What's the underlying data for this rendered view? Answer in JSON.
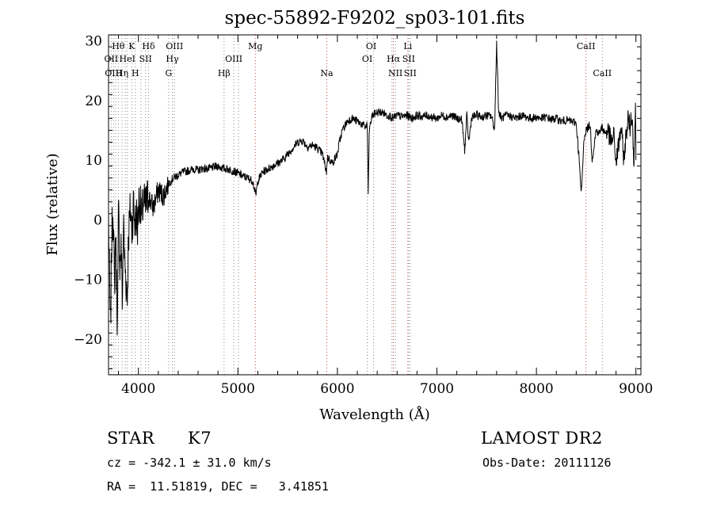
{
  "chart_data": {
    "type": "line",
    "title": "spec-55892-F9202_sp03-101.fits",
    "xlabel": "Wavelength (Å)",
    "ylabel": "Flux (relative)",
    "xlim": [
      3700,
      9050
    ],
    "ylim": [
      -26,
      31
    ],
    "xticks": [
      4000,
      5000,
      6000,
      7000,
      8000,
      9000
    ],
    "yticks": [
      -20,
      -10,
      0,
      10,
      20,
      30
    ],
    "series": [
      {
        "name": "",
        "x": [
          3700,
          3720,
          3730,
          3745,
          3760,
          3770,
          3790,
          3800,
          3815,
          3825,
          3840,
          3850,
          3860,
          3875,
          3890,
          3900,
          3920,
          3935,
          3950,
          3965,
          3980,
          3990,
          4000,
          4010,
          4030,
          4050,
          4070,
          4100,
          4150,
          4200,
          4250,
          4300,
          4350,
          4400,
          4450,
          4500,
          4550,
          4600,
          4650,
          4700,
          4750,
          4800,
          4850,
          4900,
          4950,
          5000,
          5050,
          5100,
          5150,
          5180,
          5200,
          5250,
          5300,
          5350,
          5400,
          5450,
          5500,
          5550,
          5600,
          5650,
          5700,
          5750,
          5800,
          5850,
          5890,
          5900,
          5950,
          6000,
          6020,
          6050,
          6100,
          6150,
          6200,
          6250,
          6280,
          6300,
          6310,
          6320,
          6350,
          6400,
          6450,
          6500,
          6520,
          6560,
          6600,
          6650,
          6700,
          6750,
          6800,
          6850,
          6900,
          6950,
          7000,
          7050,
          7100,
          7150,
          7200,
          7250,
          7280,
          7300,
          7320,
          7350,
          7400,
          7450,
          7500,
          7550,
          7580,
          7600,
          7620,
          7650,
          7700,
          7750,
          7800,
          7850,
          7900,
          7950,
          8000,
          8050,
          8100,
          8150,
          8200,
          8250,
          8300,
          8350,
          8400,
          8430,
          8450,
          8480,
          8500,
          8540,
          8560,
          8600,
          8630,
          8660,
          8690,
          8720,
          8750,
          8780,
          8800,
          8830,
          8850,
          8880,
          8900,
          8920,
          8940,
          8960,
          8980,
          8995,
          9000
        ],
        "y": [
          0,
          -20,
          -5,
          3,
          -12,
          -2,
          -18,
          2,
          -8,
          -4,
          -14,
          0,
          -6,
          -10,
          -13,
          -3,
          2,
          -2,
          3,
          -1,
          1,
          -2,
          2,
          4,
          0,
          3,
          2,
          4,
          2,
          5,
          4,
          6,
          7,
          7.5,
          8,
          8.2,
          8.5,
          8.3,
          8.6,
          8.5,
          8.8,
          9,
          8.6,
          8.5,
          8.2,
          7.8,
          7.3,
          7,
          6.5,
          4,
          6.5,
          8,
          8.5,
          9,
          9.5,
          10,
          11,
          12,
          13,
          13.3,
          12.2,
          12.5,
          12,
          11,
          8,
          10.5,
          9.5,
          11,
          13,
          15,
          16.5,
          17,
          16.5,
          16,
          15.5,
          16,
          4,
          15,
          17.5,
          18,
          18,
          17.5,
          17.5,
          17,
          17.5,
          17.3,
          17.5,
          17,
          17.5,
          17.3,
          17.5,
          17.2,
          17,
          17.5,
          17.2,
          17.5,
          17,
          16.8,
          11.5,
          17.5,
          13,
          17.2,
          17.5,
          17.2,
          17.5,
          17.3,
          15,
          30,
          18,
          17,
          17.5,
          17.3,
          17,
          17.5,
          17.2,
          17,
          17.2,
          17,
          17.2,
          16.8,
          17,
          16.5,
          16.7,
          16.5,
          16.2,
          10,
          4,
          14,
          15,
          16,
          10,
          15,
          14.5,
          15.5,
          14.5,
          15,
          13,
          14,
          9.5,
          13,
          15.5,
          10,
          14,
          17,
          15.5,
          18,
          10,
          19,
          10
        ],
        "color": "#000000"
      }
    ],
    "line_markers": [
      {
        "wavelength": 3727,
        "color": "#888888"
      },
      {
        "wavelength": 3750,
        "color": "#888888"
      },
      {
        "wavelength": 3771,
        "color": "#888888"
      },
      {
        "wavelength": 3798,
        "color": "#888888"
      },
      {
        "wavelength": 3835,
        "color": "#888888"
      },
      {
        "wavelength": 3869,
        "color": "#888888"
      },
      {
        "wavelength": 3889,
        "color": "#888888"
      },
      {
        "wavelength": 3934,
        "color": "#888888"
      },
      {
        "wavelength": 3969,
        "color": "#888888"
      },
      {
        "wavelength": 4026,
        "color": "#888888"
      },
      {
        "wavelength": 4072,
        "color": "#888888"
      },
      {
        "wavelength": 4102,
        "color": "#888888"
      },
      {
        "wavelength": 4304,
        "color": "#888888"
      },
      {
        "wavelength": 4341,
        "color": "#888888"
      },
      {
        "wavelength": 4363,
        "color": "#888888"
      },
      {
        "wavelength": 4861,
        "color": "#888888"
      },
      {
        "wavelength": 4959,
        "color": "#888888"
      },
      {
        "wavelength": 5007,
        "color": "#888888"
      },
      {
        "wavelength": 5175,
        "color": "#d04040"
      },
      {
        "wavelength": 5893,
        "color": "#d04040"
      },
      {
        "wavelength": 6300,
        "color": "#888888"
      },
      {
        "wavelength": 6364,
        "color": "#888888"
      },
      {
        "wavelength": 6548,
        "color": "#888888"
      },
      {
        "wavelength": 6563,
        "color": "#d04040"
      },
      {
        "wavelength": 6583,
        "color": "#888888"
      },
      {
        "wavelength": 6708,
        "color": "#d04040"
      },
      {
        "wavelength": 6716,
        "color": "#888888"
      },
      {
        "wavelength": 6731,
        "color": "#888888"
      },
      {
        "wavelength": 8498,
        "color": "#d04040"
      },
      {
        "wavelength": 8662,
        "color": "#888888"
      }
    ],
    "annotations": [
      {
        "text": "Hθ",
        "wl": 3798,
        "row": 1
      },
      {
        "text": "K",
        "wl": 3934,
        "row": 1
      },
      {
        "text": "Hδ",
        "wl": 4102,
        "row": 1
      },
      {
        "text": "OIII",
        "wl": 4363,
        "row": 1
      },
      {
        "text": "Mg",
        "wl": 5175,
        "row": 1
      },
      {
        "text": "OI",
        "wl": 6340,
        "row": 1
      },
      {
        "text": "Li",
        "wl": 6708,
        "row": 1
      },
      {
        "text": "CaII",
        "wl": 8498,
        "row": 1
      },
      {
        "text": "OII",
        "wl": 3727,
        "row": 2
      },
      {
        "text": "HeI",
        "wl": 3889,
        "row": 2
      },
      {
        "text": "SII",
        "wl": 4072,
        "row": 2
      },
      {
        "text": "Hγ",
        "wl": 4341,
        "row": 2
      },
      {
        "text": "OIII",
        "wl": 4959,
        "row": 2
      },
      {
        "text": "OI",
        "wl": 6300,
        "row": 2
      },
      {
        "text": "Hα",
        "wl": 6563,
        "row": 2
      },
      {
        "text": "SII",
        "wl": 6716,
        "row": 2
      },
      {
        "text": "OIII",
        "wl": 3750,
        "row": 3
      },
      {
        "text": "Hη",
        "wl": 3835,
        "row": 3
      },
      {
        "text": "H",
        "wl": 3969,
        "row": 3
      },
      {
        "text": "G",
        "wl": 4304,
        "row": 3
      },
      {
        "text": "Hβ",
        "wl": 4861,
        "row": 3
      },
      {
        "text": "Na",
        "wl": 5893,
        "row": 3
      },
      {
        "text": "NII",
        "wl": 6583,
        "row": 3
      },
      {
        "text": "SII",
        "wl": 6731,
        "row": 3
      },
      {
        "text": "CaII",
        "wl": 8662,
        "row": 3
      }
    ],
    "grid": false,
    "legend": "none"
  },
  "info": {
    "object_class": "STAR",
    "subclass": "K7",
    "survey": "LAMOST DR2",
    "cz_line": "cz = -342.1 ± 31.0 km/s",
    "obs_date": "Obs-Date: 20111126",
    "radec": "RA =  11.51819, DEC =   3.41851"
  }
}
